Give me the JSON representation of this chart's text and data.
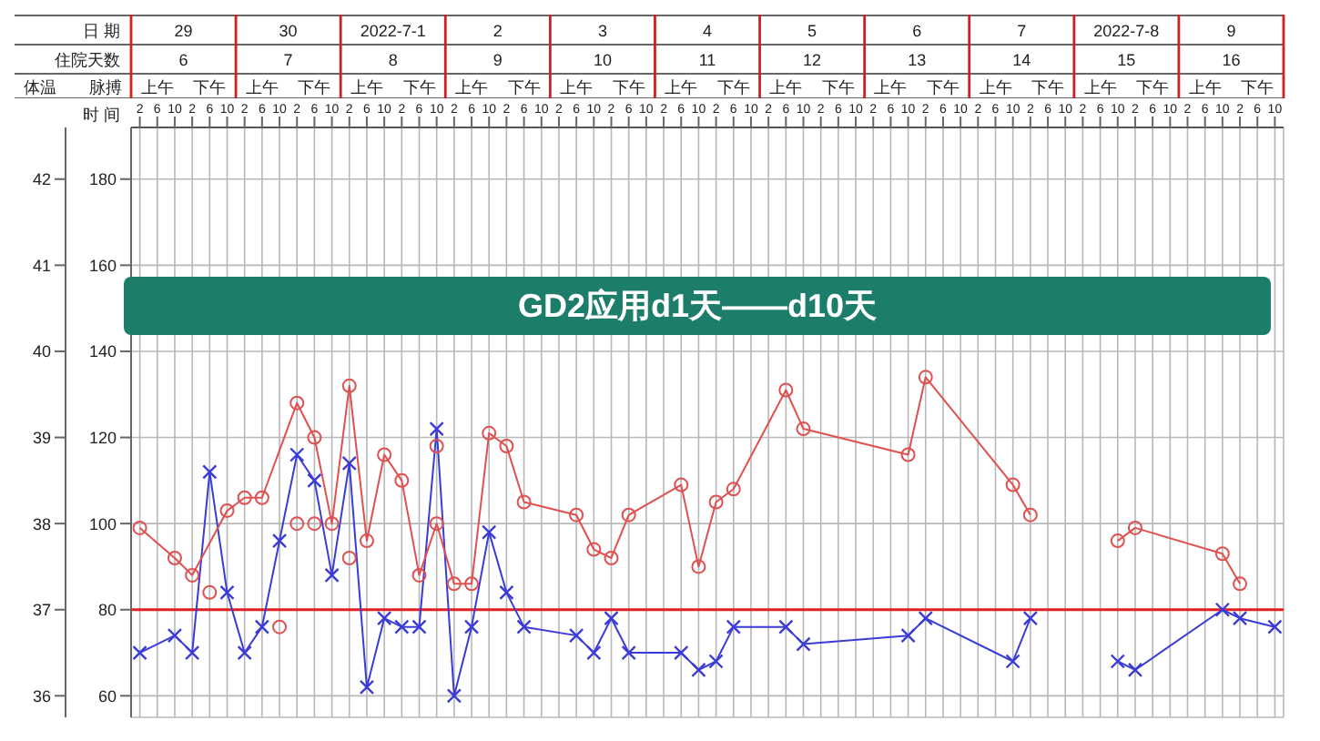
{
  "chart_data": {
    "type": "line",
    "title": "GD2应用d1天——d10天",
    "xlabel": "时 间",
    "ylabel": "脉搏",
    "y2label": "体温",
    "annotations": [
      "日 期",
      "29",
      "30",
      "2022-7-1",
      "2",
      "3",
      "4",
      "5",
      "6",
      "7",
      "2022-7-8",
      "9",
      "住院天数",
      "6",
      "7",
      "8",
      "9",
      "10",
      "11",
      "12",
      "13",
      "14",
      "15",
      "16",
      "上午",
      "下午",
      "上午",
      "下午",
      "上午",
      "下午",
      "上午",
      "下午",
      "上午",
      "下午",
      "上午",
      "下午",
      "上午",
      "下午",
      "上午",
      "下午",
      "上午",
      "下午",
      "上午",
      "下午",
      "上午",
      "下午"
    ],
    "categories": [
      "2",
      "6",
      "10",
      "2",
      "6",
      "10",
      "2",
      "6",
      "10",
      "2",
      "6",
      "10",
      "2",
      "6",
      "10",
      "2",
      "6",
      "10",
      "2",
      "6",
      "10",
      "2",
      "6",
      "10",
      "2",
      "6",
      "10",
      "2",
      "6",
      "10",
      "2",
      "6",
      "10",
      "2",
      "6",
      "10",
      "2",
      "6",
      "10",
      "2",
      "6",
      "10",
      "2",
      "6",
      "10",
      "2",
      "6",
      "10",
      "2",
      "6",
      "10",
      "2",
      "6",
      "10",
      "2",
      "6",
      "10",
      "2",
      "6",
      "10",
      "2",
      "6",
      "10",
      "2",
      "6",
      "10"
    ],
    "ylim": [
      55,
      192
    ],
    "yticks": [
      60,
      80,
      100,
      120,
      140,
      160,
      180
    ],
    "y2lim": [
      35.75,
      42.6
    ],
    "y2ticks": [
      36,
      37,
      38,
      39,
      40,
      41,
      42
    ],
    "grid": true,
    "ref_lines": [
      {
        "axis": "y2",
        "value": 37,
        "color": "#e02020"
      }
    ],
    "series": [
      {
        "axis": "y2",
        "marker": "cross",
        "color": "#3b3bd6",
        "values": [
          36.5,
          null,
          36.7,
          36.5,
          38.6,
          37.2,
          36.5,
          36.8,
          37.8,
          38.8,
          38.5,
          37.4,
          38.7,
          36.1,
          36.9,
          36.8,
          36.8,
          39.1,
          36.0,
          36.8,
          37.9,
          37.2,
          36.8,
          null,
          null,
          36.7,
          36.5,
          36.9,
          36.5,
          null,
          null,
          36.5,
          36.3,
          36.4,
          36.8,
          null,
          null,
          36.8,
          36.6,
          null,
          null,
          null,
          null,
          null,
          36.7,
          36.9,
          null,
          null,
          null,
          null,
          36.4,
          36.9,
          null,
          null,
          null,
          null,
          null,
          null,
          null,
          null,
          null,
          null,
          null,
          null,
          null,
          null
        ]
      },
      {
        "axis": "y2",
        "marker": "cross",
        "color": "#3b3bd6",
        "values": [
          null,
          null,
          null,
          null,
          null,
          null,
          null,
          null,
          null,
          null,
          null,
          null,
          null,
          null,
          null,
          null,
          null,
          null,
          null,
          null,
          null,
          null,
          null,
          null,
          null,
          null,
          null,
          null,
          null,
          null,
          null,
          null,
          null,
          null,
          null,
          null,
          null,
          null,
          null,
          null,
          null,
          null,
          null,
          null,
          null,
          null,
          null,
          null,
          null,
          null,
          null,
          null,
          null,
          null,
          null,
          null,
          36.4,
          36.3,
          null,
          null,
          null,
          null,
          37.0,
          36.9,
          null,
          36.8
        ]
      },
      {
        "marker": "circle",
        "color": "#e05050",
        "values": [
          99,
          null,
          92,
          88,
          null,
          103,
          106,
          106,
          null,
          128,
          120,
          100,
          132,
          96,
          116,
          110,
          88,
          100,
          86,
          86,
          121,
          118,
          105,
          null,
          null,
          102,
          94,
          92,
          102,
          null,
          null,
          109,
          90,
          105,
          108,
          null,
          null,
          131,
          122,
          null,
          null,
          null,
          null,
          null,
          116,
          134,
          null,
          null,
          null,
          null,
          109,
          102,
          null,
          null,
          null,
          null,
          null,
          null,
          null,
          null,
          null,
          null,
          null,
          null,
          null,
          null
        ]
      },
      {
        "marker": "circle",
        "color": "#e05050",
        "values": [
          null,
          null,
          null,
          null,
          null,
          null,
          null,
          null,
          null,
          null,
          null,
          null,
          null,
          null,
          null,
          null,
          null,
          null,
          null,
          null,
          null,
          null,
          null,
          null,
          null,
          null,
          null,
          null,
          null,
          null,
          null,
          null,
          null,
          null,
          null,
          null,
          null,
          null,
          null,
          null,
          null,
          null,
          null,
          null,
          null,
          null,
          null,
          null,
          null,
          null,
          null,
          null,
          null,
          null,
          null,
          null,
          96,
          99,
          null,
          null,
          null,
          null,
          93,
          86,
          null,
          null
        ]
      },
      {
        "type": "scatter",
        "marker": "circle",
        "color": "#e05050",
        "values": [
          null,
          null,
          null,
          null,
          84,
          null,
          null,
          null,
          76,
          100,
          100,
          null,
          92,
          null,
          null,
          null,
          null,
          118,
          null,
          null,
          null,
          null,
          null,
          null,
          null,
          null,
          null,
          null,
          null,
          null,
          null,
          null,
          null,
          null,
          null,
          null,
          null,
          null,
          null,
          null,
          null,
          null,
          null,
          null,
          null,
          null,
          null,
          null,
          null,
          null,
          null,
          null,
          null,
          null,
          null,
          null,
          null,
          null,
          null,
          null,
          null,
          null,
          null,
          null,
          null,
          null
        ]
      }
    ]
  }
}
